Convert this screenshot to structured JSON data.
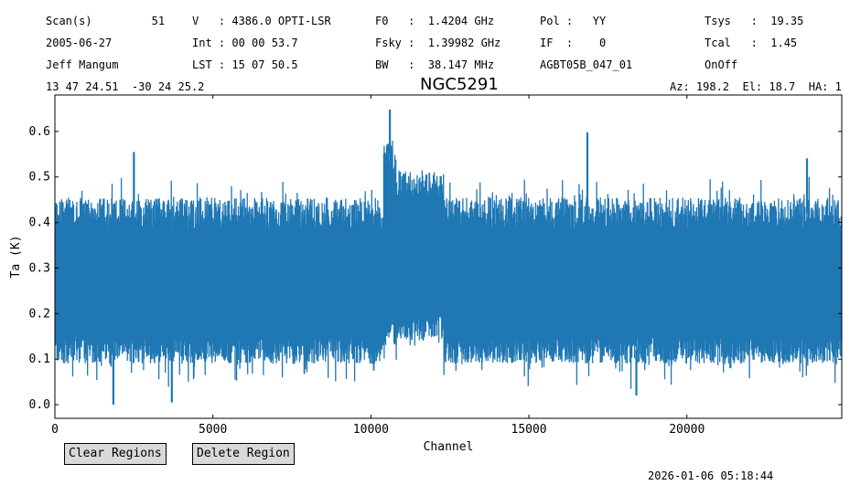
{
  "header": {
    "rows": [
      [
        "Scan(s)         51",
        "V   : 4386.0 OPTI-LSR",
        "F0   :  1.4204 GHz",
        "Pol :   YY",
        "Tsys   :  19.35"
      ],
      [
        "2005-06-27",
        "Int : 00 00 53.7",
        "Fsky :  1.39982 GHz",
        "IF  :    0",
        "Tcal   :  1.45"
      ],
      [
        "Jeff Mangum",
        "LST : 15 07 50.5",
        "BW   :  38.147 MHz",
        "AGBT05B_047_01",
        "OnOff"
      ]
    ],
    "coords": "13 47 24.51  -30 24 25.2",
    "azel": "Az: 198.2  El: 18.7  HA: 1"
  },
  "buttons": {
    "clear": "Clear Regions",
    "delete": "Delete Region"
  },
  "timestamp": "2026-01-06 05:18:44",
  "colors": {
    "line": "#1f77b4"
  },
  "chart_data": {
    "type": "line",
    "title": "NGC5291",
    "xlabel": "Channel",
    "ylabel": "Ta (K)",
    "xlim": [
      0,
      24900
    ],
    "ylim": [
      -0.03,
      0.68
    ],
    "xticks": [
      0,
      5000,
      10000,
      15000,
      20000
    ],
    "yticks": [
      0.0,
      0.1,
      0.2,
      0.3,
      0.4,
      0.5,
      0.6
    ],
    "ytick_labels": [
      "0.0",
      "0.1",
      "0.2",
      "0.3",
      "0.4",
      "0.5",
      "0.6"
    ],
    "grid": false,
    "series": [
      {
        "channel_ranges": [
          [
            0,
            10400
          ],
          [
            10400,
            10800
          ],
          [
            10800,
            12300
          ],
          [
            12300,
            24900
          ]
        ],
        "band_low": [
          0.12,
          0.16,
          0.17,
          0.12
        ],
        "band_high": [
          0.42,
          0.55,
          0.48,
          0.42
        ],
        "median": [
          0.26,
          0.34,
          0.32,
          0.26
        ],
        "peaks": [
          [
            2500,
            0.555
          ],
          [
            10600,
            0.648
          ],
          [
            16850,
            0.598
          ],
          [
            23800,
            0.541
          ]
        ],
        "dips": [
          [
            1850,
            0.0
          ],
          [
            3700,
            0.005
          ],
          [
            18400,
            0.02
          ]
        ]
      }
    ]
  }
}
